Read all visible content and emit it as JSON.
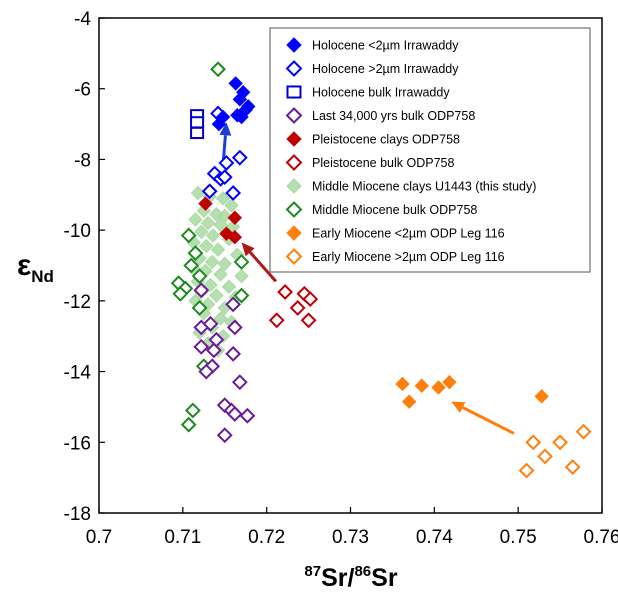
{
  "chart_data": {
    "type": "scatter",
    "x_ticks": [
      "0.7",
      "0.71",
      "0.72",
      "0.73",
      "0.74",
      "0.75",
      "0.76"
    ],
    "y_ticks": [
      "-4",
      "-6",
      "-8",
      "-10",
      "-12",
      "-14",
      "-16",
      "-18"
    ],
    "xlim": [
      0.7,
      0.76
    ],
    "ylim": [
      -18,
      -4
    ],
    "xlabel": {
      "sup1": "87",
      "base1": "Sr/",
      "sup2": "86",
      "base2": "Sr"
    },
    "ylabel": {
      "base": "ε",
      "sub": "Nd"
    },
    "grid": false,
    "legend_position": "top-right",
    "series": [
      {
        "name": "Holocene <2µm Irrawaddy",
        "marker": "diamond",
        "filled": true,
        "color": "#0000ff",
        "points": [
          [
            0.7163,
            -5.85
          ],
          [
            0.7172,
            -6.1
          ],
          [
            0.7168,
            -6.3
          ],
          [
            0.7178,
            -6.5
          ],
          [
            0.7175,
            -6.6
          ],
          [
            0.7165,
            -6.75
          ],
          [
            0.7148,
            -6.8
          ],
          [
            0.717,
            -6.8
          ],
          [
            0.7143,
            -7.0
          ]
        ]
      },
      {
        "name": "Holocene >2µm Irrawaddy",
        "marker": "diamond",
        "filled": false,
        "color": "#0000ff",
        "points": [
          [
            0.7142,
            -6.7
          ],
          [
            0.7168,
            -7.95
          ],
          [
            0.7152,
            -8.1
          ],
          [
            0.7138,
            -8.4
          ],
          [
            0.7145,
            -8.55
          ],
          [
            0.715,
            -8.5
          ],
          [
            0.7132,
            -8.9
          ],
          [
            0.716,
            -8.95
          ]
        ]
      },
      {
        "name": "Holocene bulk Irrawaddy",
        "marker": "square",
        "filled": false,
        "color": "#0000cd",
        "points": [
          [
            0.7117,
            -6.75
          ],
          [
            0.7117,
            -6.95
          ],
          [
            0.7117,
            -7.25
          ]
        ]
      },
      {
        "name": "Last 34,000 yrs bulk ODP758",
        "marker": "diamond",
        "filled": false,
        "color": "#6a1b9a",
        "points": [
          [
            0.7122,
            -11.7
          ],
          [
            0.716,
            -12.1
          ],
          [
            0.7122,
            -12.75
          ],
          [
            0.7133,
            -12.65
          ],
          [
            0.7162,
            -12.75
          ],
          [
            0.714,
            -13.1
          ],
          [
            0.7122,
            -13.3
          ],
          [
            0.7137,
            -13.4
          ],
          [
            0.716,
            -13.5
          ],
          [
            0.7135,
            -13.85
          ],
          [
            0.7128,
            -14.0
          ],
          [
            0.7168,
            -14.3
          ],
          [
            0.715,
            -14.95
          ],
          [
            0.7158,
            -15.1
          ],
          [
            0.7162,
            -15.2
          ],
          [
            0.7177,
            -15.25
          ],
          [
            0.715,
            -15.8
          ]
        ]
      },
      {
        "name": "Pleistocene clays ODP758",
        "marker": "diamond",
        "filled": true,
        "color": "#c00000",
        "points": [
          [
            0.7127,
            -9.25
          ],
          [
            0.7162,
            -9.65
          ],
          [
            0.7152,
            -10.1
          ],
          [
            0.7162,
            -10.2
          ]
        ]
      },
      {
        "name": "Pleistocene bulk ODP758",
        "marker": "diamond",
        "filled": false,
        "color": "#c00000",
        "points": [
          [
            0.7222,
            -11.75
          ],
          [
            0.7245,
            -11.8
          ],
          [
            0.7252,
            -11.95
          ],
          [
            0.7237,
            -12.2
          ],
          [
            0.7212,
            -12.55
          ],
          [
            0.725,
            -12.55
          ]
        ]
      },
      {
        "name": "Middle Miocene clays U1443 (this study)",
        "marker": "diamond",
        "filled": true,
        "color": "#a9d9a2",
        "opacity": 0.85,
        "points": [
          [
            0.7118,
            -8.95
          ],
          [
            0.7132,
            -9.05
          ],
          [
            0.7148,
            -9.1
          ],
          [
            0.7158,
            -9.3
          ],
          [
            0.7125,
            -9.45
          ],
          [
            0.714,
            -9.55
          ],
          [
            0.715,
            -9.6
          ],
          [
            0.7115,
            -9.7
          ],
          [
            0.713,
            -9.8
          ],
          [
            0.7145,
            -9.85
          ],
          [
            0.716,
            -9.9
          ],
          [
            0.7122,
            -10.05
          ],
          [
            0.7136,
            -10.15
          ],
          [
            0.7155,
            -10.25
          ],
          [
            0.7113,
            -10.35
          ],
          [
            0.7128,
            -10.45
          ],
          [
            0.7142,
            -10.55
          ],
          [
            0.7165,
            -10.7
          ],
          [
            0.712,
            -10.8
          ],
          [
            0.7135,
            -10.9
          ],
          [
            0.715,
            -10.95
          ],
          [
            0.7112,
            -11.05
          ],
          [
            0.7127,
            -11.15
          ],
          [
            0.7145,
            -11.25
          ],
          [
            0.717,
            -11.3
          ],
          [
            0.7118,
            -11.45
          ],
          [
            0.7133,
            -11.55
          ],
          [
            0.7155,
            -11.6
          ],
          [
            0.7122,
            -11.75
          ],
          [
            0.714,
            -11.85
          ],
          [
            0.7163,
            -11.9
          ],
          [
            0.7115,
            -12.0
          ],
          [
            0.713,
            -12.1
          ],
          [
            0.715,
            -12.2
          ],
          [
            0.7125,
            -12.35
          ],
          [
            0.7145,
            -12.5
          ],
          [
            0.7158,
            -12.6
          ],
          [
            0.7135,
            -12.75
          ],
          [
            0.712,
            -12.9
          ],
          [
            0.7148,
            -13.0
          ],
          [
            0.713,
            -13.2
          ],
          [
            0.7142,
            -13.4
          ]
        ]
      },
      {
        "name": "Middle Miocene bulk ODP758",
        "marker": "diamond",
        "filled": false,
        "color": "#1e8a1e",
        "points": [
          [
            0.7142,
            -5.45
          ],
          [
            0.7107,
            -10.15
          ],
          [
            0.7115,
            -10.65
          ],
          [
            0.717,
            -10.9
          ],
          [
            0.711,
            -11.0
          ],
          [
            0.712,
            -11.3
          ],
          [
            0.7095,
            -11.5
          ],
          [
            0.7103,
            -11.65
          ],
          [
            0.7097,
            -11.8
          ],
          [
            0.717,
            -11.85
          ],
          [
            0.712,
            -12.2
          ],
          [
            0.7125,
            -13.85
          ],
          [
            0.7112,
            -15.1
          ],
          [
            0.7107,
            -15.5
          ]
        ]
      },
      {
        "name": "Early Miocene <2µm ODP Leg 116",
        "marker": "diamond",
        "filled": true,
        "color": "#ff7f0e",
        "points": [
          [
            0.7362,
            -14.35
          ],
          [
            0.7385,
            -14.4
          ],
          [
            0.7418,
            -14.3
          ],
          [
            0.7405,
            -14.45
          ],
          [
            0.7528,
            -14.7
          ],
          [
            0.737,
            -14.85
          ]
        ]
      },
      {
        "name": "Early Miocene >2µm ODP Leg 116",
        "marker": "diamond",
        "filled": false,
        "color": "#ff7f0e",
        "points": [
          [
            0.7578,
            -15.7
          ],
          [
            0.7518,
            -16.0
          ],
          [
            0.755,
            -16.0
          ],
          [
            0.7532,
            -16.4
          ],
          [
            0.7565,
            -16.7
          ],
          [
            0.751,
            -16.8
          ]
        ]
      }
    ],
    "arrows": [
      {
        "color": "#1a3fd6",
        "from": [
          0.7148,
          -8.15
        ],
        "to": [
          0.7152,
          -6.95
        ]
      },
      {
        "color": "#b01818",
        "from": [
          0.7211,
          -11.45
        ],
        "to": [
          0.717,
          -10.35
        ]
      },
      {
        "color": "#ff7f0e",
        "from": [
          0.7495,
          -15.75
        ],
        "to": [
          0.742,
          -14.85
        ]
      }
    ]
  }
}
